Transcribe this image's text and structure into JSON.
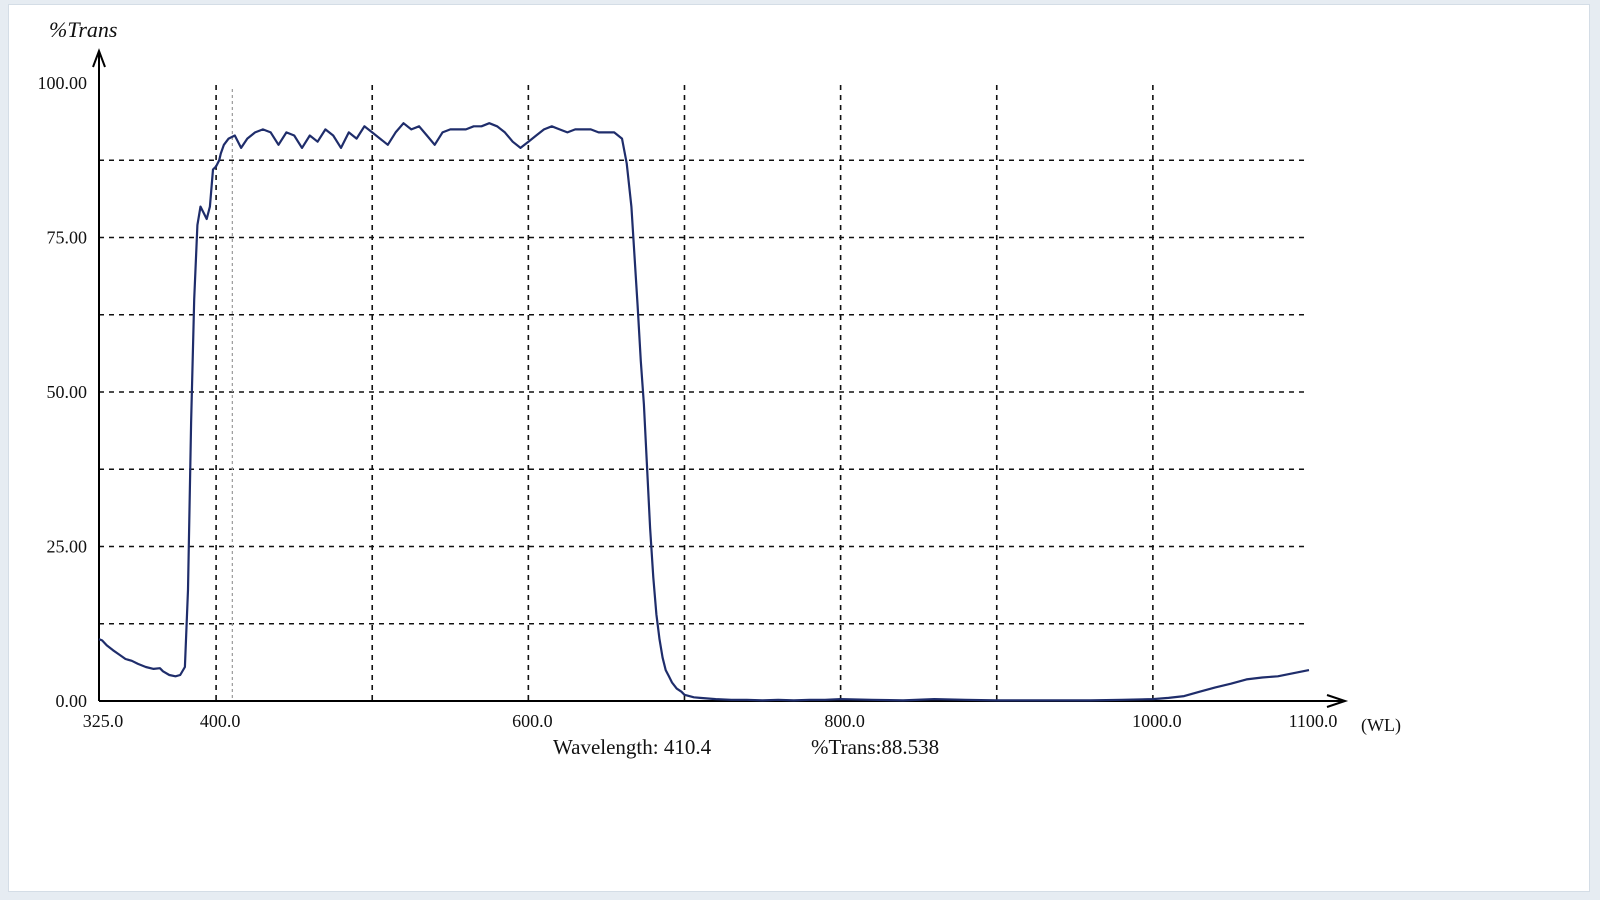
{
  "chart_data": {
    "type": "line",
    "title": "",
    "ylabel": "%Trans",
    "xlabel_unit": "(WL)",
    "xlim": [
      325.0,
      1100.0
    ],
    "ylim": [
      0.0,
      100.0
    ],
    "y_ticks": [
      {
        "value": 0,
        "label": "0.00"
      },
      {
        "value": 25,
        "label": "25.00"
      },
      {
        "value": 50,
        "label": "50.00"
      },
      {
        "value": 75,
        "label": "75.00"
      },
      {
        "value": 100,
        "label": "100.00"
      }
    ],
    "x_ticks": [
      {
        "value": 325,
        "label": "325.0"
      },
      {
        "value": 400,
        "label": "400.0"
      },
      {
        "value": 600,
        "label": "600.0"
      },
      {
        "value": 800,
        "label": "800.0"
      },
      {
        "value": 1000,
        "label": "1000.0"
      },
      {
        "value": 1100,
        "label": "1100.0"
      }
    ],
    "grid": true,
    "grid_x": [
      400,
      500,
      600,
      700,
      800,
      900,
      1000
    ],
    "grid_y": [
      12.5,
      25,
      37.5,
      50,
      62.5,
      75,
      87.5
    ],
    "cursor_x": 410.4,
    "readout": {
      "wavelength": "Wavelength: 410.4",
      "trans": "%Trans:88.538"
    },
    "line_color": "#1f2d6b",
    "series": [
      {
        "x": [
          325,
          327,
          330,
          334,
          338,
          342,
          346,
          350,
          355,
          360,
          364,
          366,
          370,
          374,
          377,
          380,
          382,
          384,
          386,
          388,
          390,
          392,
          394,
          396,
          398,
          400,
          402,
          403,
          405,
          408,
          412,
          416,
          420,
          425,
          430,
          435,
          440,
          445,
          450,
          455,
          460,
          465,
          470,
          475,
          480,
          485,
          490,
          495,
          500,
          505,
          510,
          515,
          520,
          525,
          530,
          535,
          540,
          545,
          550,
          555,
          560,
          565,
          570,
          575,
          580,
          585,
          590,
          595,
          600,
          605,
          610,
          615,
          620,
          625,
          630,
          635,
          640,
          645,
          650,
          655,
          660,
          663,
          666,
          668,
          670,
          672,
          674,
          676,
          678,
          680,
          682,
          684,
          686,
          688,
          690,
          692,
          695,
          698,
          700,
          703,
          706,
          710,
          715,
          720,
          730,
          740,
          750,
          760,
          770,
          780,
          790,
          800,
          820,
          840,
          860,
          880,
          900,
          920,
          940,
          960,
          980,
          1000,
          1010,
          1020,
          1030,
          1040,
          1050,
          1060,
          1070,
          1080,
          1090,
          1100
        ],
        "y": [
          10,
          9.8,
          9,
          8.2,
          7.5,
          6.8,
          6.5,
          6,
          5.5,
          5.2,
          5.3,
          4.8,
          4.2,
          4.0,
          4.2,
          5.5,
          18,
          45,
          65,
          77,
          80,
          79,
          78,
          80,
          86,
          86.5,
          87.5,
          88.6,
          90,
          91,
          91.5,
          89.5,
          91,
          92,
          92.5,
          92,
          90,
          92,
          91.5,
          89.5,
          91.5,
          90.5,
          92.5,
          91.5,
          89.5,
          92,
          91,
          93,
          92,
          91,
          90,
          92,
          93.5,
          92.5,
          93,
          91.5,
          90,
          92,
          92.5,
          92.5,
          92.5,
          93,
          93,
          93.5,
          93,
          92,
          90.5,
          89.5,
          90.5,
          91.5,
          92.5,
          93,
          92.5,
          92,
          92.5,
          92.5,
          92.5,
          92,
          92,
          92,
          91,
          87,
          80,
          72,
          64,
          55,
          48,
          38,
          28,
          20,
          14,
          10,
          7,
          5,
          4,
          3,
          2,
          1.5,
          1,
          0.8,
          0.6,
          0.5,
          0.4,
          0.3,
          0.2,
          0.2,
          0.1,
          0.2,
          0.1,
          0.2,
          0.2,
          0.3,
          0.2,
          0.1,
          0.3,
          0.2,
          0.1,
          0.1,
          0.1,
          0.1,
          0.2,
          0.3,
          0.5,
          0.8,
          1.5,
          2.2,
          2.8,
          3.5,
          3.8,
          4.0,
          4.5,
          5.0
        ]
      }
    ]
  }
}
